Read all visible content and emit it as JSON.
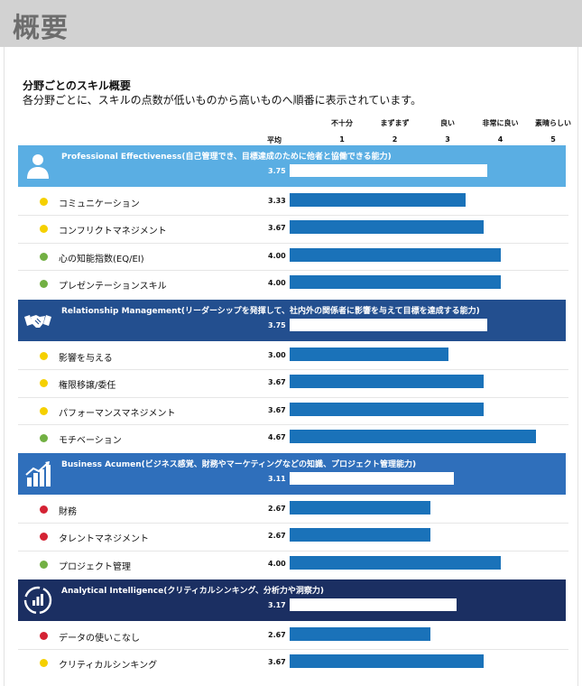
{
  "page": {
    "title": "概要"
  },
  "intro": {
    "title": "分野ごとのスキル概要",
    "description": "各分野ごとに、スキルの点数が低いものから高いものへ順番に表示されています。"
  },
  "colors": {
    "good": "#72b043",
    "ok": "#f5d000",
    "bad": "#d42233",
    "bar": "#1a72b9"
  },
  "chart_data": {
    "type": "bar",
    "avg_label": "平均",
    "scale": {
      "min": 1,
      "max": 5,
      "ticks": [
        {
          "value": 1,
          "label": "不十分"
        },
        {
          "value": 2,
          "label": "まずまず"
        },
        {
          "value": 3,
          "label": "良い"
        },
        {
          "value": 4,
          "label": "非常に良い"
        },
        {
          "value": 5,
          "label": "素晴らしい"
        }
      ]
    },
    "categories": [
      {
        "title": "Professional Effectiveness(自己管理でき、目標達成のために他者と協働できる能力)",
        "icon": "person-icon",
        "color": "#5aaee3",
        "score": "3.75",
        "value": 3.75,
        "skills": [
          {
            "name": "コミュニケーション",
            "score": "3.33",
            "value": 3.33,
            "status": "ok"
          },
          {
            "name": "コンフリクトマネジメント",
            "score": "3.67",
            "value": 3.67,
            "status": "ok"
          },
          {
            "name": "心の知能指数(EQ/EI)",
            "score": "4.00",
            "value": 4.0,
            "status": "good"
          },
          {
            "name": "プレゼンテーションスキル",
            "score": "4.00",
            "value": 4.0,
            "status": "good"
          }
        ]
      },
      {
        "title": "Relationship Management(リーダーシップを発揮して、社内外の関係者に影響を与えて目標を達成する能力)",
        "icon": "handshake-icon",
        "color": "#234f8f",
        "score": "3.75",
        "value": 3.75,
        "skills": [
          {
            "name": "影響を与える",
            "score": "3.00",
            "value": 3.0,
            "status": "ok"
          },
          {
            "name": "権限移譲/委任",
            "score": "3.67",
            "value": 3.67,
            "status": "ok"
          },
          {
            "name": "パフォーマンスマネジメント",
            "score": "3.67",
            "value": 3.67,
            "status": "ok"
          },
          {
            "name": "モチベーション",
            "score": "4.67",
            "value": 4.67,
            "status": "good"
          }
        ]
      },
      {
        "title": "Business Acumen(ビジネス感覚、財務やマーケティングなどの知識、プロジェクト管理能力)",
        "icon": "growth-chart-icon",
        "color": "#2f6fbb",
        "score": "3.11",
        "value": 3.11,
        "skills": [
          {
            "name": "財務",
            "score": "2.67",
            "value": 2.67,
            "status": "bad"
          },
          {
            "name": "タレントマネジメント",
            "score": "2.67",
            "value": 2.67,
            "status": "bad"
          },
          {
            "name": "プロジェクト管理",
            "score": "4.00",
            "value": 4.0,
            "status": "good"
          }
        ]
      },
      {
        "title": "Analytical Intelligence(クリティカルシンキング、分析力や洞察力)",
        "icon": "analysis-icon",
        "color": "#1b2f62",
        "score": "3.17",
        "value": 3.17,
        "skills": [
          {
            "name": "データの使いこなし",
            "score": "2.67",
            "value": 2.67,
            "status": "bad"
          },
          {
            "name": "クリティカルシンキング",
            "score": "3.67",
            "value": 3.67,
            "status": "ok"
          }
        ]
      }
    ]
  }
}
